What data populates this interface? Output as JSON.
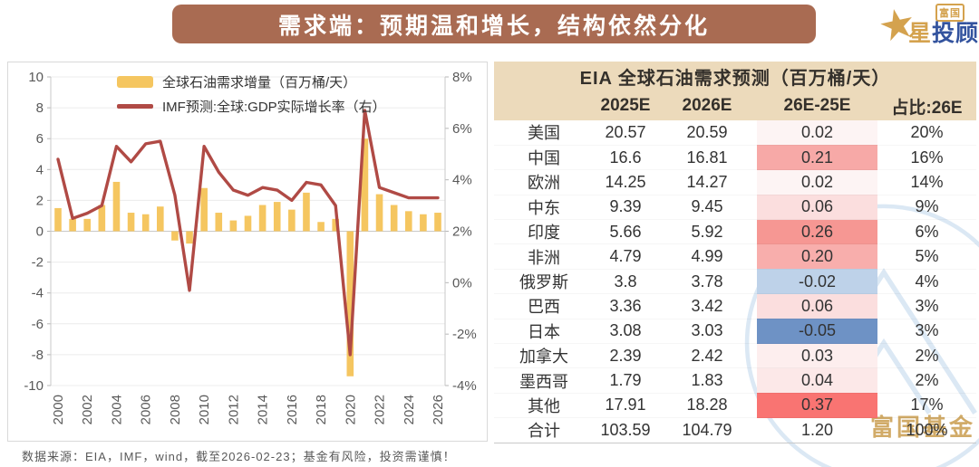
{
  "header": {
    "title": "需求端：预期温和增长，结构依然分化"
  },
  "logo": {
    "badge": "富国",
    "name_gold": "星",
    "name_blue": "投顾"
  },
  "chart_data": {
    "type": "bar+line combo",
    "x": [
      2000,
      2001,
      2002,
      2003,
      2004,
      2005,
      2006,
      2007,
      2008,
      2009,
      2010,
      2011,
      2012,
      2013,
      2014,
      2015,
      2016,
      2017,
      2018,
      2019,
      2020,
      2021,
      2022,
      2023,
      2024,
      2025,
      2026
    ],
    "series": [
      {
        "name": "全球石油需求增量（百万桶/天）",
        "type": "bar",
        "axis": "left",
        "color": "#f5c660",
        "values": [
          1.5,
          0.8,
          0.8,
          1.7,
          3.2,
          1.2,
          1.1,
          1.6,
          -0.6,
          -0.8,
          2.8,
          1.2,
          0.7,
          1.0,
          1.7,
          1.9,
          1.4,
          2.5,
          0.6,
          0.8,
          -9.4,
          6.0,
          2.4,
          1.7,
          1.3,
          1.1,
          1.2
        ]
      },
      {
        "name": "IMF预测:全球:GDP实际增长率（右）",
        "type": "line",
        "axis": "right",
        "color": "#b04a45",
        "values": [
          4.8,
          2.5,
          2.7,
          3.0,
          5.3,
          4.7,
          5.4,
          5.5,
          3.4,
          -0.3,
          5.3,
          4.3,
          3.6,
          3.4,
          3.7,
          3.6,
          3.2,
          3.9,
          3.8,
          3.0,
          -2.8,
          6.7,
          3.7,
          3.5,
          3.3,
          3.3,
          3.3
        ]
      }
    ],
    "left_axis": {
      "min": -10,
      "max": 10,
      "step": 2
    },
    "right_axis": {
      "min": -4,
      "max": 8,
      "step": 2,
      "format": "percent"
    },
    "x_tick_labels": [
      "2000",
      "2002",
      "2004",
      "2006",
      "2008",
      "2010",
      "2012",
      "2014",
      "2016",
      "2018",
      "2020",
      "2022",
      "2024",
      "2026"
    ],
    "grid": true,
    "legend_position": "top"
  },
  "table": {
    "title": "EIA 全球石油需求预测（百万桶/天）",
    "columns": [
      "",
      "2025E",
      "2026E",
      "26E-25E",
      "占比:26E"
    ],
    "rows": [
      {
        "label": "美国",
        "v2025": "20.57",
        "v2026": "20.59",
        "diff": "0.02",
        "diff_bg": "#fdf4f4",
        "share": "20%"
      },
      {
        "label": "中国",
        "v2025": "16.6",
        "v2026": "16.81",
        "diff": "0.21",
        "diff_bg": "#f7a9a7",
        "share": "16%"
      },
      {
        "label": "欧洲",
        "v2025": "14.25",
        "v2026": "14.27",
        "diff": "0.02",
        "diff_bg": "#fdf4f4",
        "share": "14%"
      },
      {
        "label": "中东",
        "v2025": "9.39",
        "v2026": "9.45",
        "diff": "0.06",
        "diff_bg": "#fbdede",
        "share": "9%"
      },
      {
        "label": "印度",
        "v2025": "5.66",
        "v2026": "5.92",
        "diff": "0.26",
        "diff_bg": "#f69793",
        "share": "6%"
      },
      {
        "label": "非洲",
        "v2025": "4.79",
        "v2026": "4.99",
        "diff": "0.20",
        "diff_bg": "#f8aeac",
        "share": "5%"
      },
      {
        "label": "俄罗斯",
        "v2025": "3.8",
        "v2026": "3.78",
        "diff": "-0.02",
        "diff_bg": "#bed2e9",
        "share": "4%"
      },
      {
        "label": "巴西",
        "v2025": "3.36",
        "v2026": "3.42",
        "diff": "0.06",
        "diff_bg": "#fbdede",
        "share": "3%"
      },
      {
        "label": "日本",
        "v2025": "3.08",
        "v2026": "3.03",
        "diff": "-0.05",
        "diff_bg": "#6e92c5",
        "share": "3%"
      },
      {
        "label": "加拿大",
        "v2025": "2.39",
        "v2026": "2.42",
        "diff": "0.03",
        "diff_bg": "#fdeeee",
        "share": "2%"
      },
      {
        "label": "墨西哥",
        "v2025": "1.79",
        "v2026": "1.83",
        "diff": "0.04",
        "diff_bg": "#fce8e8",
        "share": "2%"
      },
      {
        "label": "其他",
        "v2025": "17.91",
        "v2026": "18.28",
        "diff": "0.37",
        "diff_bg": "#f97472",
        "share": "17%"
      }
    ],
    "total": {
      "label": "合计",
      "v2025": "103.59",
      "v2026": "104.79",
      "diff": "1.20",
      "diff_bg": "",
      "share": "100%",
      "total": true
    }
  },
  "watermark": {
    "text": "富国基金"
  },
  "footer": {
    "text": "数据来源：EIA，IMF，wind，截至2026-02-23；基金有风险，投资需谨慎！"
  },
  "colors": {
    "header_band": "#a96b52",
    "bar": "#f5c660",
    "line": "#b04a45",
    "table_header_bg": "#ecdabb",
    "watermark_blue": "#dbe8f4",
    "watermark_gold": "#cda258"
  }
}
